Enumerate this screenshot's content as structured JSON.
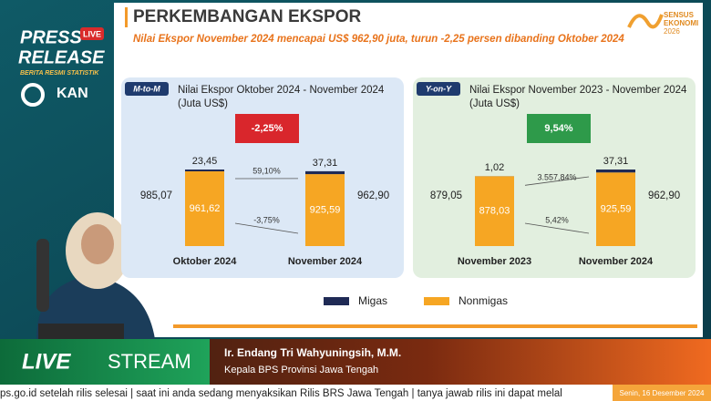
{
  "overlay": {
    "press": "PRESS",
    "live_badge": "LIVE",
    "release": "RELEASE",
    "brs": "BERITA RESMI STATISTIK",
    "kan": "KAN"
  },
  "slide": {
    "title": "PERKEMBANGAN EKSPOR",
    "subtitle": "Nilai Ekspor November 2024 mencapai US$ 962,90 juta, turun -2,25 persen dibanding Oktober 2024",
    "logo": [
      "SENSUS",
      "EKONOMI",
      "2026"
    ]
  },
  "chart_data": [
    {
      "type": "stacked_bar",
      "badge": "M-to-M",
      "title": "Nilai Ekspor Oktober 2024 - November 2024",
      "subtitle": "(Juta US$)",
      "categories": [
        "Oktober 2024",
        "November 2024"
      ],
      "series": [
        {
          "name": "Migas",
          "color": "#1f2a55",
          "values": [
            23.45,
            37.31
          ],
          "value_labels": [
            "23,45",
            "37,31"
          ]
        },
        {
          "name": "Nonmigas",
          "color": "#f6a623",
          "values": [
            961.62,
            925.59
          ],
          "value_labels": [
            "961,62",
            "925,59"
          ]
        }
      ],
      "total_labels": [
        "985,07",
        "962,90"
      ],
      "change": "-2,25%",
      "change_color": "#d9262c",
      "migas_change": "59,10%",
      "nonmigas_change": "-3,75%",
      "panel_color": "#dce8f6"
    },
    {
      "type": "stacked_bar",
      "badge": "Y-on-Y",
      "title": "Nilai Ekspor November 2023 - November 2024",
      "subtitle": "(Juta US$)",
      "categories": [
        "November 2023",
        "November 2024"
      ],
      "series": [
        {
          "name": "Migas",
          "color": "#1f2a55",
          "values": [
            1.02,
            37.31
          ],
          "value_labels": [
            "1,02",
            "37,31"
          ]
        },
        {
          "name": "Nonmigas",
          "color": "#f6a623",
          "values": [
            878.03,
            925.59
          ],
          "value_labels": [
            "878,03",
            "925,59"
          ]
        }
      ],
      "total_labels": [
        "879,05",
        "962,90"
      ],
      "change": "9,54%",
      "change_color": "#2e9a4a",
      "migas_change": "3.557,84%",
      "nonmigas_change": "5,42%",
      "panel_color": "#e2efdf"
    }
  ],
  "lower_third": {
    "live": "LIVE",
    "stream": "STREAM",
    "name": "Ir. Endang Tri Wahyuningsih, M.M.",
    "position": "Kepala BPS Provinsi Jawa Tengah"
  },
  "ticker": {
    "text": "ps.go.id setelah rilis selesai  |  saat ini anda sedang menyaksikan Rilis BRS Jawa Tengah  |  tanya jawab rilis ini dapat melal",
    "date": "Senin, 16 Desember 2024"
  }
}
